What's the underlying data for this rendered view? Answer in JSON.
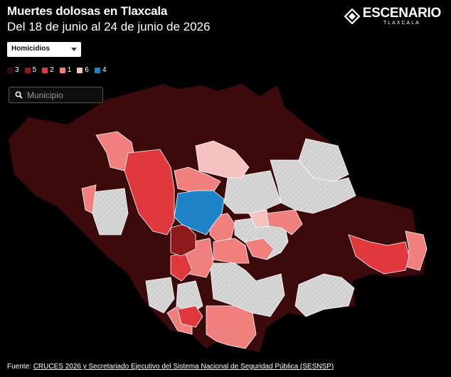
{
  "header": {
    "title": "Muertes dolosas en Tlaxcala",
    "subtitle": "Del 18 de junio al 24 de junio de 2026"
  },
  "brand": {
    "name": "ESCENARIO",
    "sub": "TLAXCALA"
  },
  "filter": {
    "selected": "Homicidios"
  },
  "legend": [
    {
      "label": "3",
      "color": "#3d0a0c"
    },
    {
      "label": "5",
      "color": "#8e1a1d"
    },
    {
      "label": "2",
      "color": "#e0383c"
    },
    {
      "label": "1",
      "color": "#f07f7d"
    },
    {
      "label": "6",
      "color": "#f6c2c0"
    },
    {
      "label": "4",
      "color": "#1f84c7"
    }
  ],
  "search": {
    "placeholder": "Municipio"
  },
  "colors": {
    "no_data": "#d6d6d6",
    "hatch": "#bdbdbd",
    "border": "#ffffff",
    "background": "#000000"
  },
  "footer": {
    "prefix": "Fuente: ",
    "source": "CRUCES 2026 y Secretariado Ejecutivo del Sistema Nacional de Seguridad Pública (SESNSP)"
  }
}
